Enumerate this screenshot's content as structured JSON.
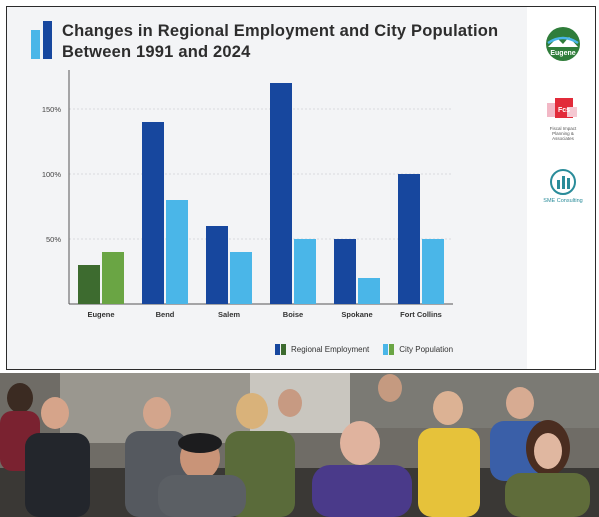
{
  "chart_data": {
    "type": "bar",
    "title": "Changes in Regional Employment and City Population Between 1991 and 2024",
    "categories": [
      "Eugene",
      "Bend",
      "Salem",
      "Boise",
      "Spokane",
      "Fort Collins"
    ],
    "series": [
      {
        "name": "Regional Employment",
        "values": [
          30,
          140,
          60,
          170,
          50,
          100
        ]
      },
      {
        "name": "City Population",
        "values": [
          40,
          80,
          40,
          50,
          20,
          50
        ]
      }
    ],
    "yticks": [
      "50%",
      "100%",
      "150%"
    ],
    "ylim": [
      0,
      180
    ],
    "grid": true,
    "legend_position": "bottom-right",
    "colors": {
      "regional_employment": "#17479e",
      "city_population": "#4ab6e8",
      "eugene_employment": "#3d6b2f",
      "eugene_population": "#6aa544"
    }
  },
  "logos": {
    "eugene": "Eugene",
    "fcs": "Fcs",
    "fcs_subtext": "Fiscal Impact Planning & Associates",
    "sme": "SME Consulting"
  },
  "video": {
    "description_icon": "audience-video-icon"
  }
}
